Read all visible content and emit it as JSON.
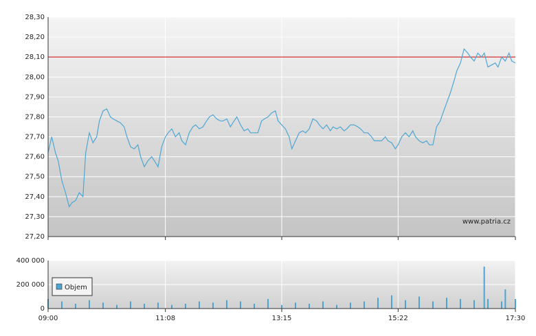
{
  "watermark": "www.patria.cz",
  "chart_data": [
    {
      "type": "line",
      "color": "#4ea6d4",
      "x": [
        "09:00",
        "09:04",
        "09:08",
        "09:11",
        "09:15",
        "09:19",
        "09:23",
        "09:26",
        "09:30",
        "09:34",
        "09:38",
        "09:41",
        "09:45",
        "09:49",
        "09:53",
        "09:56",
        "10:00",
        "10:04",
        "10:08",
        "10:11",
        "10:15",
        "10:19",
        "10:23",
        "10:26",
        "10:30",
        "10:34",
        "10:38",
        "10:41",
        "10:45",
        "10:49",
        "10:53",
        "10:56",
        "11:00",
        "11:04",
        "11:08",
        "11:11",
        "11:15",
        "11:19",
        "11:23",
        "11:26",
        "11:30",
        "11:34",
        "11:38",
        "11:41",
        "11:45",
        "11:49",
        "11:53",
        "11:56",
        "12:00",
        "12:04",
        "12:08",
        "12:11",
        "12:15",
        "12:19",
        "12:23",
        "12:26",
        "12:30",
        "12:34",
        "12:38",
        "12:41",
        "12:45",
        "12:49",
        "12:53",
        "12:56",
        "13:00",
        "13:04",
        "13:08",
        "13:11",
        "13:15",
        "13:19",
        "13:23",
        "13:26",
        "13:30",
        "13:34",
        "13:38",
        "13:41",
        "13:45",
        "13:49",
        "13:53",
        "13:56",
        "14:00",
        "14:04",
        "14:08",
        "14:11",
        "14:15",
        "14:19",
        "14:23",
        "14:26",
        "14:30",
        "14:34",
        "14:38",
        "14:41",
        "14:45",
        "14:49",
        "14:53",
        "14:56",
        "15:00",
        "15:04",
        "15:08",
        "15:11",
        "15:15",
        "15:19",
        "15:22",
        "15:26",
        "15:30",
        "15:34",
        "15:38",
        "15:41",
        "15:45",
        "15:49",
        "15:53",
        "15:56",
        "16:00",
        "16:04",
        "16:08",
        "16:11",
        "16:15",
        "16:19",
        "16:23",
        "16:26",
        "16:30",
        "16:34",
        "16:38",
        "16:41",
        "16:45",
        "16:49",
        "16:53",
        "16:56",
        "17:00",
        "17:04",
        "17:08",
        "17:11",
        "17:15",
        "17:19",
        "17:23",
        "17:26",
        "17:30"
      ],
      "values": [
        27.62,
        27.7,
        27.62,
        27.58,
        27.48,
        27.42,
        27.35,
        27.37,
        27.38,
        27.42,
        27.4,
        27.62,
        27.72,
        27.67,
        27.7,
        27.78,
        27.83,
        27.84,
        27.8,
        27.79,
        27.78,
        27.77,
        27.75,
        27.7,
        27.65,
        27.64,
        27.66,
        27.6,
        27.55,
        27.58,
        27.6,
        27.58,
        27.55,
        27.65,
        27.7,
        27.72,
        27.74,
        27.7,
        27.72,
        27.68,
        27.66,
        27.72,
        27.75,
        27.76,
        27.74,
        27.75,
        27.78,
        27.8,
        27.81,
        27.79,
        27.78,
        27.78,
        27.79,
        27.75,
        27.78,
        27.8,
        27.76,
        27.73,
        27.74,
        27.72,
        27.72,
        27.72,
        27.78,
        27.79,
        27.8,
        27.82,
        27.83,
        27.78,
        27.76,
        27.74,
        27.7,
        27.64,
        27.68,
        27.72,
        27.73,
        27.72,
        27.74,
        27.79,
        27.78,
        27.76,
        27.74,
        27.76,
        27.73,
        27.75,
        27.74,
        27.75,
        27.73,
        27.74,
        27.76,
        27.76,
        27.75,
        27.74,
        27.72,
        27.72,
        27.7,
        27.68,
        27.68,
        27.68,
        27.7,
        27.68,
        27.67,
        27.64,
        27.66,
        27.7,
        27.72,
        27.7,
        27.73,
        27.7,
        27.68,
        27.67,
        27.68,
        27.66,
        27.66,
        27.75,
        27.78,
        27.82,
        27.87,
        27.92,
        27.98,
        28.03,
        28.07,
        28.14,
        28.12,
        28.1,
        28.08,
        28.12,
        28.1,
        28.12,
        28.05,
        28.06,
        28.07,
        28.05,
        28.1,
        28.08,
        28.12,
        28.08,
        28.07
      ],
      "reference_line": {
        "value": 28.1,
        "color": "#cc0000"
      },
      "xlim": [
        "09:00",
        "17:30"
      ],
      "xticks": [
        "09:00",
        "11:08",
        "13:15",
        "15:22",
        "17:30"
      ],
      "ylim": [
        27.2,
        28.3
      ],
      "yticks": [
        {
          "value": 27.2,
          "label": "27,20"
        },
        {
          "value": 27.3,
          "label": "27,30"
        },
        {
          "value": 27.4,
          "label": "27,40"
        },
        {
          "value": 27.5,
          "label": "27,50"
        },
        {
          "value": 27.6,
          "label": "27,60"
        },
        {
          "value": 27.7,
          "label": "27,70"
        },
        {
          "value": 27.8,
          "label": "27,80"
        },
        {
          "value": 27.9,
          "label": "27,90"
        },
        {
          "value": 28.0,
          "label": "28,00"
        },
        {
          "value": 28.1,
          "label": "28,10"
        },
        {
          "value": 28.2,
          "label": "28,20"
        },
        {
          "value": 28.3,
          "label": "28,30"
        }
      ],
      "grid": true
    },
    {
      "type": "bar",
      "x": [
        "09:00",
        "09:15",
        "09:30",
        "09:45",
        "10:00",
        "10:15",
        "10:30",
        "10:45",
        "11:00",
        "11:15",
        "11:30",
        "11:45",
        "12:00",
        "12:15",
        "12:30",
        "12:45",
        "13:00",
        "13:15",
        "13:30",
        "13:45",
        "14:00",
        "14:15",
        "14:30",
        "14:45",
        "15:00",
        "15:15",
        "15:30",
        "15:45",
        "16:00",
        "16:15",
        "16:30",
        "16:45",
        "16:56",
        "17:00",
        "17:15",
        "17:19",
        "17:30"
      ],
      "series": [
        {
          "name": "Objem",
          "color": "#4fa3cf",
          "values": [
            80000,
            60000,
            40000,
            70000,
            50000,
            30000,
            60000,
            40000,
            50000,
            30000,
            40000,
            60000,
            50000,
            70000,
            60000,
            40000,
            80000,
            30000,
            50000,
            40000,
            60000,
            30000,
            50000,
            60000,
            90000,
            110000,
            70000,
            100000,
            60000,
            90000,
            80000,
            70000,
            350000,
            80000,
            60000,
            160000,
            80000
          ]
        }
      ],
      "xlim": [
        "09:00",
        "17:30"
      ],
      "xticks": [
        "09:00",
        "11:08",
        "13:15",
        "15:22",
        "17:30"
      ],
      "ylim": [
        0,
        400000
      ],
      "yticks": [
        0,
        {
          "value": 200000,
          "label": "200 000"
        },
        {
          "value": 400000,
          "label": "400 000"
        }
      ],
      "grid": true
    }
  ]
}
